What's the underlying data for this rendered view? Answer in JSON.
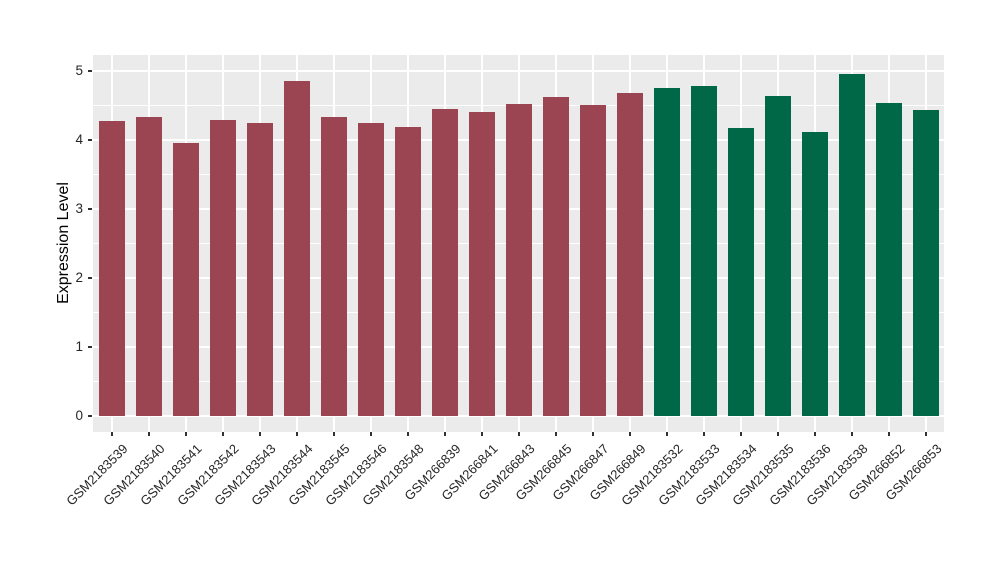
{
  "figure": {
    "background": "#ffffff",
    "panel_background": "#ebebeb",
    "grid_color": "#ffffff",
    "tick_color": "#333333",
    "tick_label_color": "#262626",
    "axis_title_color": "#000000"
  },
  "chart_data": {
    "type": "bar",
    "title": "",
    "xlabel": "",
    "ylabel": "Expression Level",
    "ylim": [
      0,
      5.23
    ],
    "yticks": [
      0,
      1,
      2,
      3,
      4,
      5
    ],
    "yminor": [
      0.5,
      1.5,
      2.5,
      3.5,
      4.5
    ],
    "grid": true,
    "legend_position": "none",
    "x_tick_rotation_deg": 45,
    "categories": [
      "GSM2183539",
      "GSM2183540",
      "GSM2183541",
      "GSM2183542",
      "GSM2183543",
      "GSM2183544",
      "GSM2183545",
      "GSM2183546",
      "GSM2183548",
      "GSM266839",
      "GSM266841",
      "GSM266843",
      "GSM266845",
      "GSM266847",
      "GSM266849",
      "GSM2183532",
      "GSM2183533",
      "GSM2183534",
      "GSM2183535",
      "GSM2183536",
      "GSM2183538",
      "GSM266852",
      "GSM266853"
    ],
    "values": [
      4.28,
      4.33,
      3.96,
      4.29,
      4.25,
      4.85,
      4.34,
      4.24,
      4.19,
      4.45,
      4.41,
      4.52,
      4.62,
      4.51,
      4.68,
      4.76,
      4.79,
      4.17,
      4.64,
      4.12,
      4.96,
      4.54,
      4.43
    ],
    "groups": [
      "maroon",
      "maroon",
      "maroon",
      "maroon",
      "maroon",
      "maroon",
      "maroon",
      "maroon",
      "maroon",
      "maroon",
      "maroon",
      "maroon",
      "maroon",
      "maroon",
      "maroon",
      "green",
      "green",
      "green",
      "green",
      "green",
      "green",
      "green",
      "green"
    ],
    "group_colors": {
      "maroon": "#9b4452",
      "green": "#006847"
    }
  }
}
